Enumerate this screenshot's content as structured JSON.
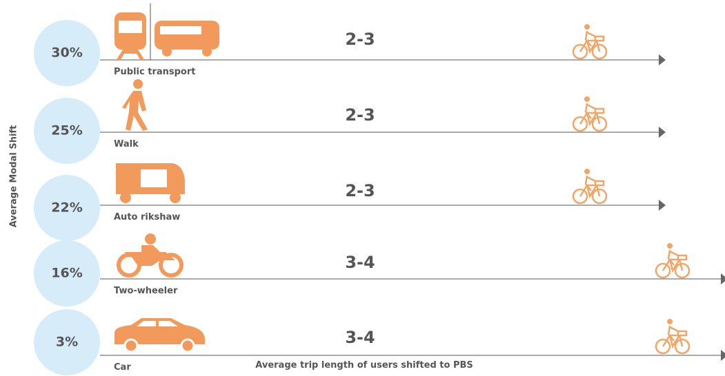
{
  "y_axis_label": "Average Modal Shift",
  "x_axis_label": "Average trip length of users shifted to PBS",
  "rows": [
    {
      "share": "30%",
      "mode": "Public transport",
      "trip_length": "2-3"
    },
    {
      "share": "25%",
      "mode": "Walk",
      "trip_length": "2-3"
    },
    {
      "share": "22%",
      "mode": "Auto rikshaw",
      "trip_length": "2-3"
    },
    {
      "share": "16%",
      "mode": "Two-wheeler",
      "trip_length": "3-4"
    },
    {
      "share": "3%",
      "mode": "Car",
      "trip_length": "3-4"
    }
  ]
}
